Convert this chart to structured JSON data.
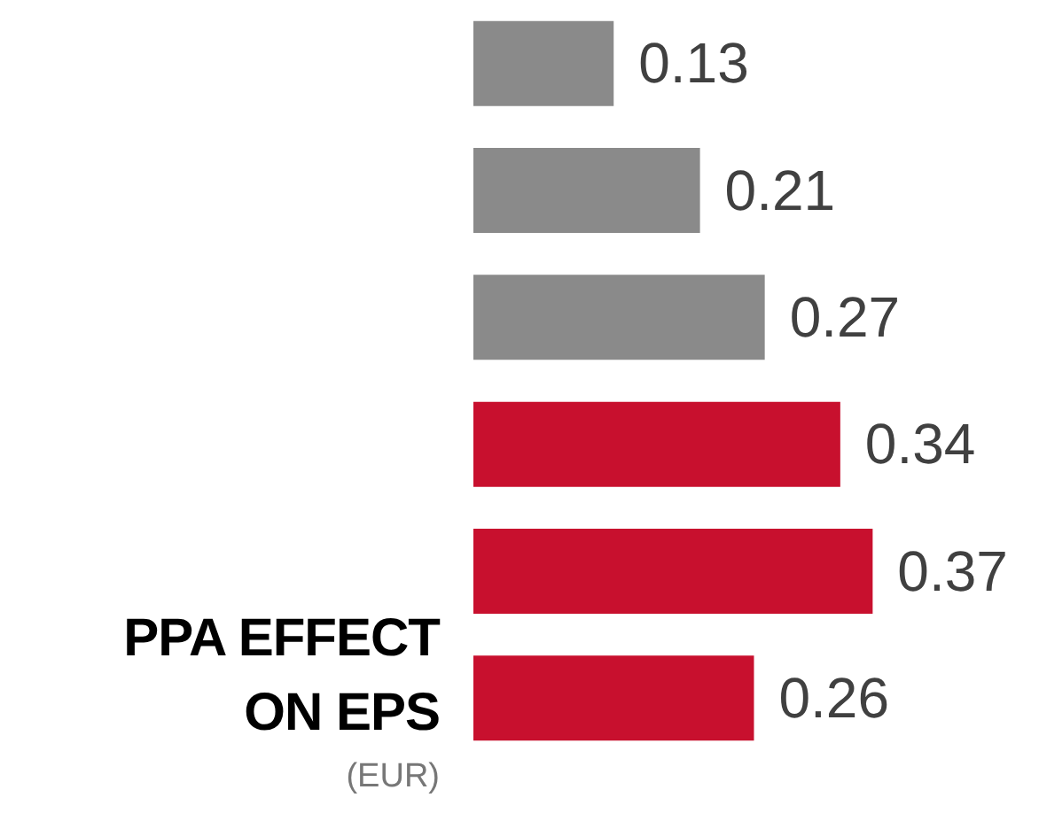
{
  "chart_data": {
    "type": "bar",
    "orientation": "horizontal",
    "title": "PPA EFFECT ON EPS",
    "subtitle": "(EUR)",
    "categories": [
      null,
      null,
      null,
      null,
      null,
      null
    ],
    "values": [
      0.13,
      0.21,
      0.27,
      0.34,
      0.37,
      0.26
    ],
    "colors": [
      "#8a8a8a",
      "#8a8a8a",
      "#8a8a8a",
      "#c8102e",
      "#c8102e",
      "#c8102e"
    ],
    "data_labels": true
  }
}
